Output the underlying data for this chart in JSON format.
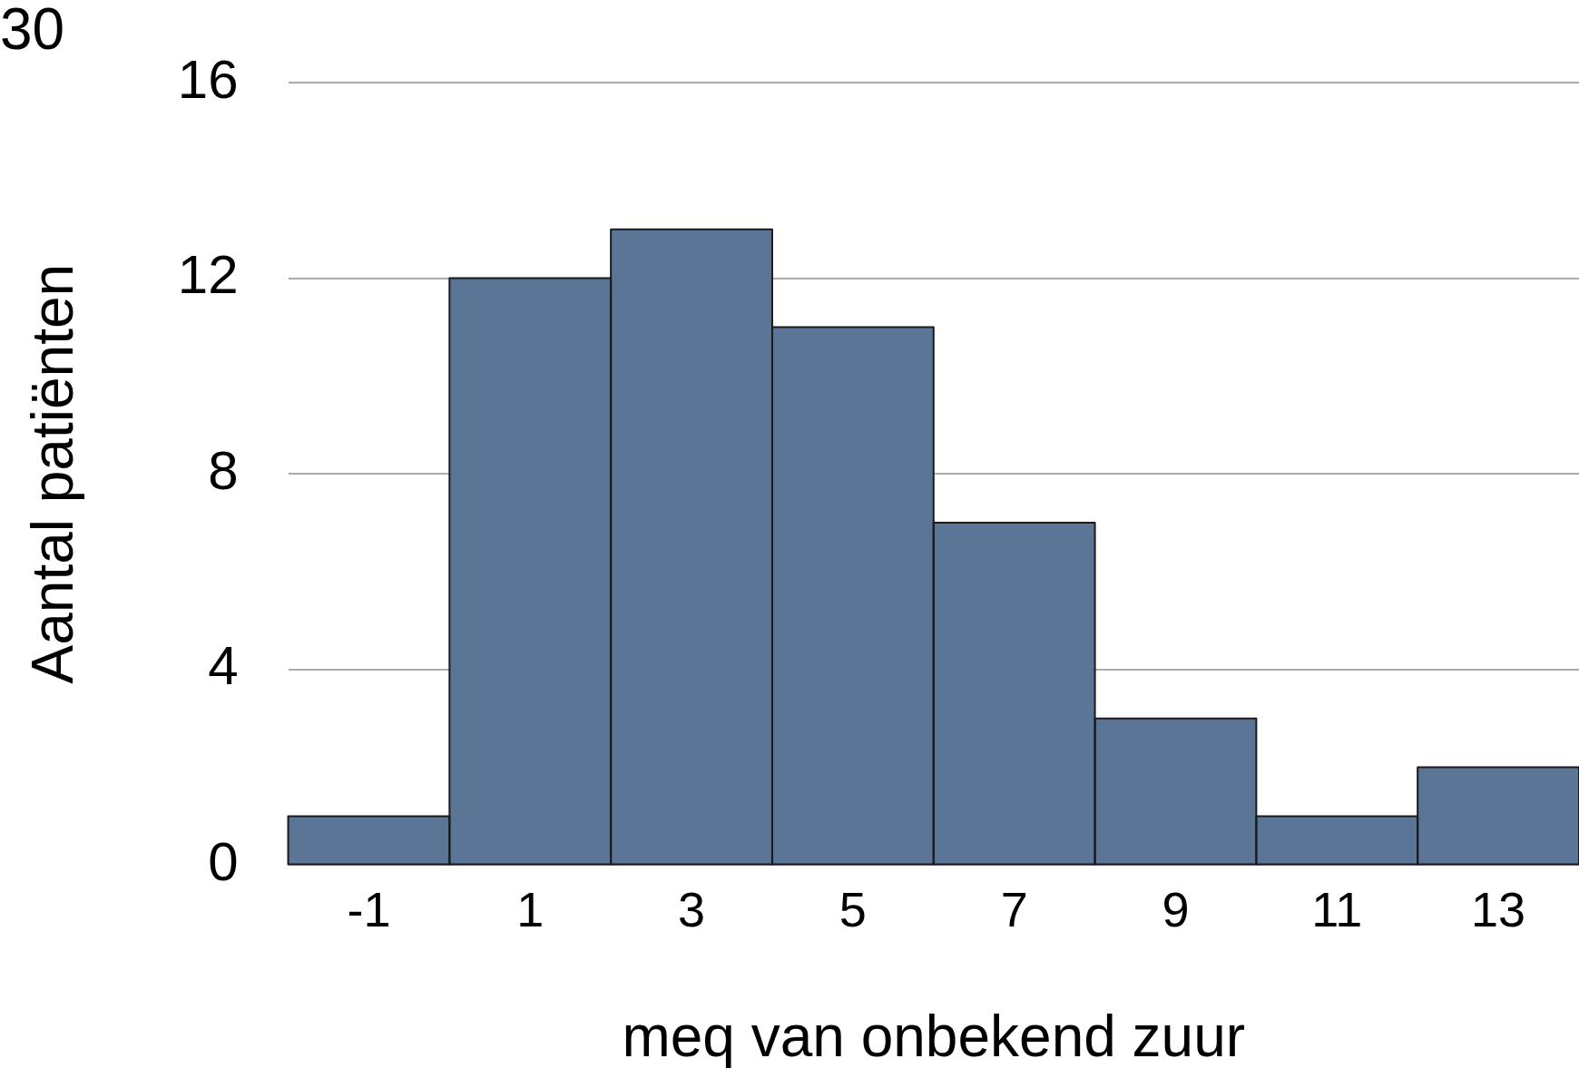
{
  "chart_data": {
    "type": "histogram",
    "xlabel": "meq van onbekend zuur",
    "ylabel": "Aantal patiënten",
    "bins": [
      -2,
      0,
      2,
      4,
      6,
      8,
      10,
      12,
      14
    ],
    "values": [
      1,
      12,
      13,
      11,
      7,
      3,
      1,
      2
    ],
    "color": "#5b7596",
    "xlim": [
      -2,
      14
    ],
    "xticks": [
      -1,
      1,
      3,
      5,
      7,
      9,
      11,
      13
    ],
    "ylim": [
      0,
      16
    ],
    "yticks": [
      0,
      4,
      8,
      12,
      16
    ],
    "grid": "y",
    "legend": false,
    "annotations": [
      "30"
    ]
  }
}
